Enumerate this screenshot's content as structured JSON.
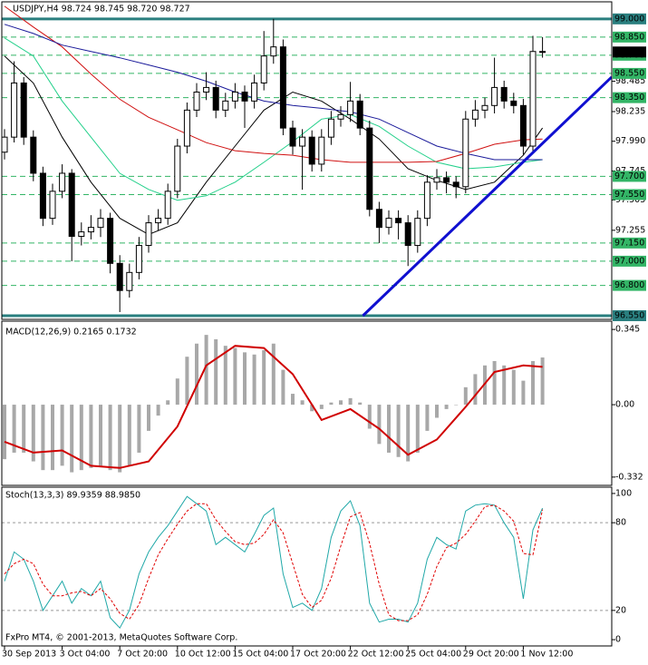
{
  "chart_data": [
    {
      "type": "candlestick",
      "title": "USDJPY,H4  98.724 98.745 98.720 98.727",
      "categories": [
        "30 Sep 2013",
        null,
        null,
        null,
        null,
        null,
        "3 Oct 04:00",
        null,
        null,
        null,
        null,
        null,
        "7 Oct 20:00",
        null,
        null,
        null,
        null,
        null,
        "10 Oct 12:00",
        null,
        null,
        null,
        null,
        null,
        "15 Oct 04:00",
        null,
        null,
        null,
        null,
        null,
        "17 Oct 20:00",
        null,
        null,
        null,
        null,
        null,
        "22 Oct 12:00",
        null,
        null,
        null,
        null,
        null,
        "25 Oct 04:00",
        null,
        null,
        null,
        null,
        null,
        "29 Oct 20:00",
        null,
        null,
        null,
        null,
        null,
        "1 Nov 12:00",
        null,
        null
      ],
      "open": [
        97.9,
        98.024,
        98.471,
        98.024,
        97.726,
        97.354,
        97.577,
        97.726,
        97.205,
        97.242,
        97.279,
        97.354,
        96.982,
        96.758,
        96.907,
        97.13,
        97.317,
        97.354,
        97.577,
        97.95,
        98.247,
        98.396,
        98.434,
        98.247,
        98.322,
        98.396,
        98.322,
        98.471,
        98.694,
        98.769,
        98.099,
        97.95,
        98.024,
        97.801,
        98.024,
        98.173,
        98.21,
        98.322,
        98.099,
        97.428,
        97.279,
        97.354,
        97.317,
        97.13,
        97.354,
        97.652,
        97.689,
        97.652,
        97.615,
        98.173,
        98.247,
        98.285,
        98.434,
        98.322,
        98.285,
        97.95,
        98.731
      ],
      "high": [
        98.09,
        98.65,
        98.52,
        98.08,
        97.78,
        97.64,
        97.8,
        97.76,
        97.32,
        97.38,
        97.43,
        97.4,
        97.05,
        96.98,
        97.2,
        97.38,
        97.43,
        97.64,
        98.01,
        98.31,
        98.47,
        98.56,
        98.49,
        98.39,
        98.47,
        98.45,
        98.54,
        98.9,
        99.0,
        98.83,
        98.16,
        98.09,
        98.08,
        98.09,
        98.24,
        98.28,
        98.48,
        98.38,
        98.16,
        97.49,
        97.42,
        97.42,
        97.38,
        97.42,
        97.71,
        97.76,
        97.74,
        97.7,
        98.24,
        98.33,
        98.35,
        98.68,
        98.49,
        98.39,
        98.34,
        98.86,
        98.85
      ],
      "low": [
        97.84,
        97.98,
        97.96,
        97.66,
        97.29,
        97.3,
        97.52,
        97.0,
        97.13,
        97.18,
        97.2,
        96.9,
        96.58,
        96.7,
        96.85,
        97.07,
        97.25,
        97.3,
        97.52,
        97.89,
        98.19,
        98.33,
        98.18,
        98.19,
        98.26,
        98.1,
        98.26,
        98.41,
        98.63,
        98.04,
        97.88,
        97.59,
        97.74,
        97.74,
        97.96,
        98.11,
        98.15,
        98.04,
        97.37,
        97.15,
        97.22,
        97.18,
        96.96,
        97.07,
        97.29,
        97.59,
        97.56,
        97.52,
        97.56,
        98.11,
        98.18,
        98.22,
        98.26,
        98.22,
        97.88,
        97.9,
        98.68
      ],
      "close": [
        98.024,
        98.471,
        98.024,
        97.726,
        97.354,
        97.577,
        97.726,
        97.205,
        97.242,
        97.279,
        97.354,
        96.982,
        96.758,
        96.907,
        97.13,
        97.317,
        97.354,
        97.577,
        97.95,
        98.247,
        98.396,
        98.434,
        98.247,
        98.322,
        98.396,
        98.322,
        98.471,
        98.694,
        98.769,
        98.099,
        97.95,
        98.024,
        97.801,
        98.024,
        98.173,
        98.21,
        98.322,
        98.099,
        97.428,
        97.279,
        97.354,
        97.317,
        97.13,
        97.354,
        97.652,
        97.689,
        97.652,
        97.615,
        98.173,
        98.247,
        98.285,
        98.434,
        98.322,
        98.285,
        97.95,
        98.731,
        98.727
      ],
      "moving_averages": {
        "x": [
          0,
          3,
          6,
          9,
          12,
          15,
          18,
          21,
          24,
          27,
          30,
          33,
          36,
          39,
          42,
          45,
          48,
          51,
          54,
          56
        ],
        "series": [
          {
            "color": "#000000",
            "values": [
              98.694,
              98.471,
              98.024,
              97.652,
              97.354,
              97.22,
              97.317,
              97.652,
              97.95,
              98.247,
              98.396,
              98.322,
              98.173,
              98.009,
              97.763,
              97.667,
              97.592,
              97.652,
              97.875,
              98.099
            ]
          },
          {
            "color": "#22d08a",
            "values": [
              98.843,
              98.694,
              98.322,
              98.024,
              97.726,
              97.592,
              97.503,
              97.54,
              97.652,
              97.816,
              97.987,
              98.173,
              98.21,
              98.113,
              97.95,
              97.816,
              97.763,
              97.778,
              97.816,
              97.838
            ]
          },
          {
            "color": "#d01010",
            "values": [
              99.104,
              98.933,
              98.769,
              98.545,
              98.337,
              98.188,
              98.084,
              97.979,
              97.912,
              97.89,
              97.875,
              97.838,
              97.816,
              97.816,
              97.816,
              97.823,
              97.89,
              97.965,
              98.002,
              98.009
            ]
          },
          {
            "color": "#1a1a9a",
            "values": [
              98.955,
              98.88,
              98.784,
              98.731,
              98.679,
              98.62,
              98.56,
              98.486,
              98.396,
              98.322,
              98.285,
              98.262,
              98.233,
              98.173,
              98.061,
              97.95,
              97.89,
              97.838,
              97.838,
              97.838
            ]
          }
        ]
      },
      "trendline": {
        "color": "#1010d0",
        "x": [
          37.3,
          63.2
        ],
        "values": [
          96.55,
          98.52
        ]
      },
      "levels": [
        {
          "value": 99,
          "label": "99.000",
          "color": "#2a7f7f",
          "major": true
        },
        {
          "value": 98.85,
          "label": "98.850",
          "color": "#33b566",
          "major": false
        },
        {
          "value": 98.7,
          "label": "98.700",
          "color": "#33b566",
          "major": false
        },
        {
          "value": 98.55,
          "label": "98.550",
          "color": "#33b566",
          "major": false
        },
        {
          "value": 98.35,
          "label": "98.350",
          "color": "#33b566",
          "major": false
        },
        {
          "value": 97.7,
          "label": "97.700",
          "color": "#33b566",
          "major": false
        },
        {
          "value": 97.55,
          "label": "97.550",
          "color": "#33b566",
          "major": false
        },
        {
          "value": 97.15,
          "label": "97.150",
          "color": "#33b566",
          "major": false
        },
        {
          "value": 97,
          "label": "97.000",
          "color": "#33b566",
          "major": false
        },
        {
          "value": 96.8,
          "label": "96.800",
          "color": "#33b566",
          "major": false
        },
        {
          "value": 96.55,
          "label": "96.550",
          "color": "#2a7f7f",
          "major": true
        }
      ],
      "current_price": 98.727,
      "ylim": [
        96.52,
        99.141
      ],
      "yticks": [
        98.485,
        98.235,
        {
          "value": 97.99,
          "label": "97.990"
        },
        97.745,
        97.505,
        97.255
      ]
    },
    {
      "type": "macd",
      "title": "MACD(12,26,9) 0.2165 0.1732",
      "color": "#a8a8a8",
      "values": [
        -0.25,
        -0.22,
        -0.22,
        -0.26,
        -0.3,
        -0.3,
        -0.28,
        -0.31,
        -0.3,
        -0.29,
        -0.28,
        -0.3,
        -0.31,
        -0.28,
        -0.22,
        -0.12,
        -0.05,
        0.02,
        0.12,
        0.22,
        0.28,
        0.32,
        0.3,
        0.27,
        0.26,
        0.24,
        0.23,
        0.25,
        0.28,
        0.16,
        0.05,
        0.02,
        -0.03,
        -0.02,
        0.01,
        0.02,
        0.03,
        0.01,
        -0.11,
        -0.18,
        -0.22,
        -0.24,
        -0.26,
        -0.22,
        -0.12,
        -0.06,
        -0.02,
        0.0,
        0.08,
        0.14,
        0.18,
        0.2,
        0.18,
        0.16,
        0.11,
        0.2,
        0.2165
      ],
      "signal": {
        "color": "#d00000",
        "x": [
          0,
          3,
          6,
          9,
          12,
          15,
          18,
          21,
          24,
          27,
          30,
          33,
          36,
          39,
          42,
          45,
          48,
          51,
          54,
          56
        ],
        "values": [
          -0.17,
          -0.22,
          -0.21,
          -0.28,
          -0.29,
          -0.26,
          -0.1,
          0.18,
          0.27,
          0.26,
          0.14,
          -0.07,
          -0.02,
          -0.11,
          -0.23,
          -0.16,
          -0.01,
          0.15,
          0.18,
          0.1732
        ]
      },
      "ylim": [
        -0.37,
        0.383
      ],
      "yticks": [
        0.345,
        {
          "value": 0,
          "label": "0.00"
        },
        -0.332
      ]
    },
    {
      "type": "stochastic",
      "title": "Stoch(13,3,3) 89.9359 88.9850",
      "annotation": "FxPro MT4, © 2001-2013, MetaQuotes Software Corp.",
      "series": [
        {
          "color": "#20a8a8",
          "dashed": false,
          "values": [
            40,
            60,
            55,
            40,
            20,
            30,
            40,
            25,
            35,
            30,
            40,
            15,
            8,
            20,
            45,
            60,
            70,
            78,
            88,
            98,
            93,
            88,
            65,
            70,
            65,
            60,
            72,
            85,
            90,
            45,
            22,
            25,
            20,
            35,
            70,
            88,
            95,
            78,
            25,
            12,
            14,
            14,
            12,
            25,
            55,
            70,
            65,
            62,
            88,
            92,
            93,
            92,
            80,
            70,
            28,
            75,
            89.9359
          ]
        },
        {
          "color": "#e00000",
          "dashed": true,
          "values": [
            45,
            52,
            55,
            52,
            38,
            30,
            30,
            32,
            33,
            30,
            35,
            28,
            18,
            14,
            24,
            42,
            58,
            69,
            79,
            88,
            93,
            93,
            82,
            74,
            67,
            65,
            66,
            72,
            82,
            73,
            52,
            31,
            22,
            27,
            42,
            64,
            84,
            87,
            66,
            38,
            17,
            13,
            13,
            17,
            31,
            50,
            63,
            66,
            72,
            81,
            91,
            92,
            88,
            81,
            59,
            58,
            88.985
          ]
        }
      ],
      "levels": [
        80,
        20
      ],
      "ylim": [
        -4.3,
        104.3
      ],
      "yticks": [
        100,
        80,
        20,
        0
      ]
    }
  ]
}
